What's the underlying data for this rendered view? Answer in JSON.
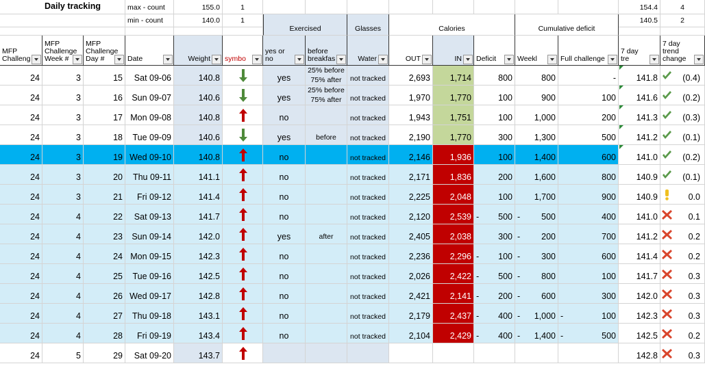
{
  "summary": {
    "title": "Daily tracking",
    "max": {
      "label": "max - count",
      "value": "155.0",
      "count": "1",
      "trend": "154.4",
      "trend_count": "4"
    },
    "min": {
      "label": "min - count",
      "value": "140.0",
      "count": "1",
      "trend": "140.5",
      "trend_count": "2"
    }
  },
  "groups": [
    "Exercised",
    "Glasses",
    "Calories",
    "Cumulative deficit"
  ],
  "headers": [
    "MFP Challeng",
    "MFP Challenge Week #",
    "MFP Challenge Day #",
    "Date",
    "Weight",
    "symbo",
    "yes or no",
    "before breakfas",
    "Water",
    "OUT",
    "IN",
    "Deficit",
    "Weekl",
    "Full challenge",
    "7 day tre",
    "7 day trend change"
  ],
  "rows": [
    [
      "24",
      "3",
      "15",
      "Sat 09-06",
      "140.8",
      "yes",
      "25% before 75% after",
      "not tracked",
      "2,693",
      "1,714",
      "800",
      "800",
      "-",
      "141.8",
      "(0.4)"
    ],
    [
      "24",
      "3",
      "16",
      "Sun 09-07",
      "140.6",
      "yes",
      "25% before 75% after",
      "not tracked",
      "1,970",
      "1,770",
      "100",
      "900",
      "100",
      "141.6",
      "(0.2)"
    ],
    [
      "24",
      "3",
      "17",
      "Mon 09-08",
      "140.8",
      "no",
      null,
      "not tracked",
      "1,943",
      "1,751",
      "100",
      "1,000",
      "200",
      "141.3",
      "(0.3)"
    ],
    [
      "24",
      "3",
      "18",
      "Tue 09-09",
      "140.6",
      "yes",
      "before",
      "not tracked",
      "2,190",
      "1,770",
      "300",
      "1,300",
      "500",
      "141.2",
      "(0.1)"
    ],
    [
      "24",
      "3",
      "19",
      "Wed 09-10",
      "140.8",
      "no",
      null,
      "not tracked",
      "2,146",
      "1,936",
      "100",
      "1,400",
      "600",
      "141.0",
      "(0.2)"
    ],
    [
      "24",
      "3",
      "20",
      "Thu 09-11",
      "141.1",
      "no",
      null,
      "not tracked",
      "2,171",
      "1,836",
      "200",
      "1,600",
      "800",
      "140.9",
      "(0.1)"
    ],
    [
      "24",
      "3",
      "21",
      "Fri 09-12",
      "141.4",
      "no",
      null,
      "not tracked",
      "2,225",
      "2,048",
      "100",
      "1,700",
      "900",
      "140.9",
      "0.0"
    ],
    [
      "24",
      "4",
      "22",
      "Sat 09-13",
      "141.7",
      "no",
      null,
      "not tracked",
      "2,120",
      "2,539",
      [
        "-",
        "500"
      ],
      [
        "-",
        "500"
      ],
      "400",
      "141.0",
      "0.1"
    ],
    [
      "24",
      "4",
      "23",
      "Sun 09-14",
      "142.0",
      "yes",
      "after",
      "not tracked",
      "2,405",
      "2,038",
      "300",
      [
        "-",
        "200"
      ],
      "700",
      "141.2",
      "0.2"
    ],
    [
      "24",
      "4",
      "24",
      "Mon 09-15",
      "142.3",
      "no",
      null,
      "not tracked",
      "2,236",
      "2,296",
      [
        "-",
        "100"
      ],
      [
        "-",
        "300"
      ],
      "600",
      "141.4",
      "0.2"
    ],
    [
      "24",
      "4",
      "25",
      "Tue 09-16",
      "142.5",
      "no",
      null,
      "not tracked",
      "2,026",
      "2,422",
      [
        "-",
        "500"
      ],
      [
        "-",
        "800"
      ],
      "100",
      "141.7",
      "0.3"
    ],
    [
      "24",
      "4",
      "26",
      "Wed 09-17",
      "142.8",
      "no",
      null,
      "not tracked",
      "2,421",
      "2,141",
      [
        "-",
        "200"
      ],
      [
        "-",
        "600"
      ],
      "300",
      "142.0",
      "0.3"
    ],
    [
      "24",
      "4",
      "27",
      "Thu 09-18",
      "143.1",
      "no",
      null,
      "not tracked",
      "2,179",
      "2,437",
      [
        "-",
        "400"
      ],
      [
        "-",
        "1,000"
      ],
      [
        "-",
        "100"
      ],
      "142.3",
      "0.3"
    ],
    [
      "24",
      "4",
      "28",
      "Fri 09-19",
      "143.4",
      "no",
      null,
      "not tracked",
      "2,104",
      "2,429",
      [
        "-",
        "400"
      ],
      [
        "-",
        "1,400"
      ],
      [
        "-",
        "500"
      ],
      "142.5",
      "0.2"
    ],
    [
      "24",
      "5",
      "29",
      "Sat 09-20",
      "143.7",
      null,
      null,
      null,
      null,
      null,
      null,
      null,
      null,
      "142.8",
      "0.3"
    ]
  ]
}
